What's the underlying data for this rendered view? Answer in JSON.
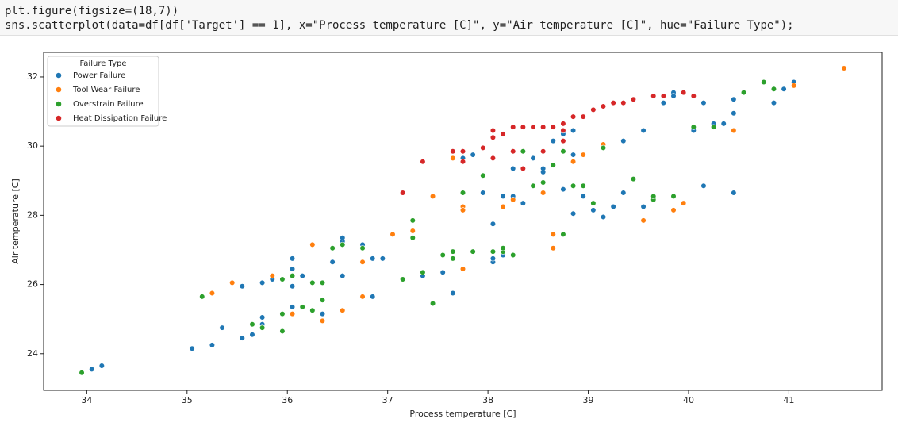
{
  "code": {
    "lines": [
      "plt.figure(figsize=(18,7))",
      "sns.scatterplot(data=df[df['Target'] == 1], x=\"Process temperature [C]\", y=\"Air temperature [C]\", hue=\"Failure Type\");"
    ]
  },
  "chart_data": {
    "type": "scatter",
    "xlabel": "Process temperature [C]",
    "ylabel": "Air temperature [C]",
    "legend_title": "Failure Type",
    "legend": "upper left",
    "xlim": [
      33.57,
      41.93
    ],
    "ylim": [
      22.94,
      32.71
    ],
    "xticks": [
      34,
      35,
      36,
      37,
      38,
      39,
      40,
      41
    ],
    "yticks": [
      24,
      26,
      28,
      30,
      32
    ],
    "series": [
      {
        "name": "Power Failure",
        "color": "#1f77b4",
        "x": [
          34.05,
          34.15,
          35.05,
          35.25,
          35.35,
          35.55,
          35.55,
          35.65,
          35.75,
          35.75,
          35.75,
          35.85,
          36.05,
          36.05,
          36.05,
          36.05,
          36.15,
          36.15,
          36.25,
          36.35,
          36.45,
          36.55,
          36.55,
          36.55,
          36.55,
          36.75,
          36.85,
          36.85,
          36.95,
          37.35,
          37.35,
          37.55,
          37.65,
          37.65,
          37.75,
          37.85,
          37.95,
          38.05,
          38.05,
          38.05,
          38.05,
          38.15,
          38.15,
          38.25,
          38.25,
          38.35,
          38.45,
          38.45,
          38.55,
          38.55,
          38.65,
          38.75,
          38.75,
          38.85,
          38.85,
          38.85,
          38.95,
          39.05,
          39.15,
          39.25,
          39.35,
          39.35,
          39.55,
          39.55,
          39.75,
          39.85,
          39.85,
          40.05,
          40.15,
          40.15,
          40.25,
          40.35,
          40.45,
          40.45,
          40.45,
          40.85,
          41.05,
          40.95
        ],
        "y": [
          23.55,
          23.65,
          24.15,
          24.25,
          24.75,
          24.45,
          25.95,
          24.55,
          24.85,
          25.05,
          26.05,
          26.15,
          25.35,
          25.95,
          26.45,
          26.75,
          26.25,
          25.35,
          25.25,
          25.15,
          26.65,
          27.25,
          27.35,
          26.25,
          25.25,
          27.15,
          26.75,
          25.65,
          26.75,
          26.35,
          26.25,
          26.35,
          25.75,
          29.85,
          29.65,
          29.75,
          28.65,
          26.65,
          26.75,
          27.75,
          29.65,
          28.55,
          26.85,
          28.55,
          29.35,
          28.35,
          28.85,
          29.65,
          29.25,
          29.35,
          30.15,
          30.35,
          28.75,
          28.05,
          29.75,
          30.45,
          28.55,
          28.15,
          27.95,
          28.25,
          28.65,
          30.15,
          28.25,
          30.45,
          31.25,
          31.55,
          31.45,
          30.45,
          31.25,
          28.85,
          30.65,
          30.65,
          30.95,
          31.35,
          28.65,
          31.25,
          31.85,
          31.65
        ]
      },
      {
        "name": "Tool Wear Failure",
        "color": "#ff7f0e",
        "x": [
          35.25,
          35.45,
          35.85,
          36.05,
          36.25,
          36.35,
          36.55,
          36.75,
          36.75,
          37.05,
          37.25,
          37.45,
          37.65,
          37.75,
          37.75,
          37.75,
          38.15,
          38.25,
          38.55,
          38.65,
          38.65,
          38.85,
          38.95,
          39.15,
          39.55,
          39.85,
          39.85,
          39.95,
          40.45,
          41.05,
          41.55
        ],
        "y": [
          25.75,
          26.05,
          26.25,
          25.15,
          27.15,
          24.95,
          25.25,
          25.65,
          26.65,
          27.45,
          27.55,
          28.55,
          29.65,
          28.25,
          28.15,
          26.45,
          28.25,
          28.45,
          28.65,
          27.05,
          27.45,
          29.55,
          29.75,
          30.05,
          27.85,
          28.15,
          28.55,
          28.35,
          30.45,
          31.75,
          32.25
        ]
      },
      {
        "name": "Overstrain Failure",
        "color": "#2ca02c",
        "x": [
          33.95,
          35.15,
          35.65,
          35.75,
          35.95,
          35.95,
          35.95,
          36.05,
          36.15,
          36.25,
          36.25,
          36.35,
          36.35,
          36.45,
          36.55,
          36.75,
          37.15,
          37.25,
          37.25,
          37.35,
          37.45,
          37.55,
          37.65,
          37.65,
          37.75,
          37.85,
          37.95,
          38.05,
          38.15,
          38.15,
          38.25,
          38.35,
          38.45,
          38.55,
          38.65,
          38.75,
          38.75,
          38.85,
          38.95,
          39.05,
          39.15,
          39.45,
          39.65,
          39.65,
          39.85,
          40.05,
          40.25,
          40.55,
          40.75,
          40.85
        ],
        "y": [
          23.45,
          25.65,
          24.85,
          24.75,
          24.65,
          25.15,
          26.15,
          26.25,
          25.35,
          25.25,
          26.05,
          25.55,
          26.05,
          27.05,
          27.15,
          27.05,
          26.15,
          27.85,
          27.35,
          26.35,
          25.45,
          26.85,
          26.75,
          26.95,
          28.65,
          26.95,
          29.15,
          26.95,
          26.95,
          27.05,
          26.85,
          29.85,
          28.85,
          28.95,
          29.45,
          27.45,
          29.85,
          28.85,
          28.85,
          28.35,
          29.95,
          29.05,
          28.45,
          28.55,
          28.55,
          30.55,
          30.55,
          31.55,
          31.85,
          31.65
        ]
      },
      {
        "name": "Heat Dissipation Failure",
        "color": "#d62728",
        "x": [
          37.15,
          37.35,
          37.65,
          37.75,
          37.75,
          37.95,
          38.05,
          38.05,
          38.15,
          38.25,
          38.35,
          38.45,
          38.55,
          38.65,
          38.75,
          38.75,
          38.85,
          38.95,
          39.05,
          39.15,
          39.25,
          39.35,
          39.45,
          39.65,
          39.75,
          39.95,
          40.05,
          38.25,
          38.05,
          38.35,
          38.75,
          38.55
        ],
        "y": [
          28.65,
          29.55,
          29.85,
          29.55,
          29.85,
          29.95,
          30.25,
          30.45,
          30.35,
          30.55,
          30.55,
          30.55,
          30.55,
          30.55,
          30.65,
          30.45,
          30.85,
          30.85,
          31.05,
          31.15,
          31.25,
          31.25,
          31.35,
          31.45,
          31.45,
          31.55,
          31.45,
          29.85,
          29.65,
          29.35,
          30.15,
          29.85
        ]
      }
    ]
  }
}
